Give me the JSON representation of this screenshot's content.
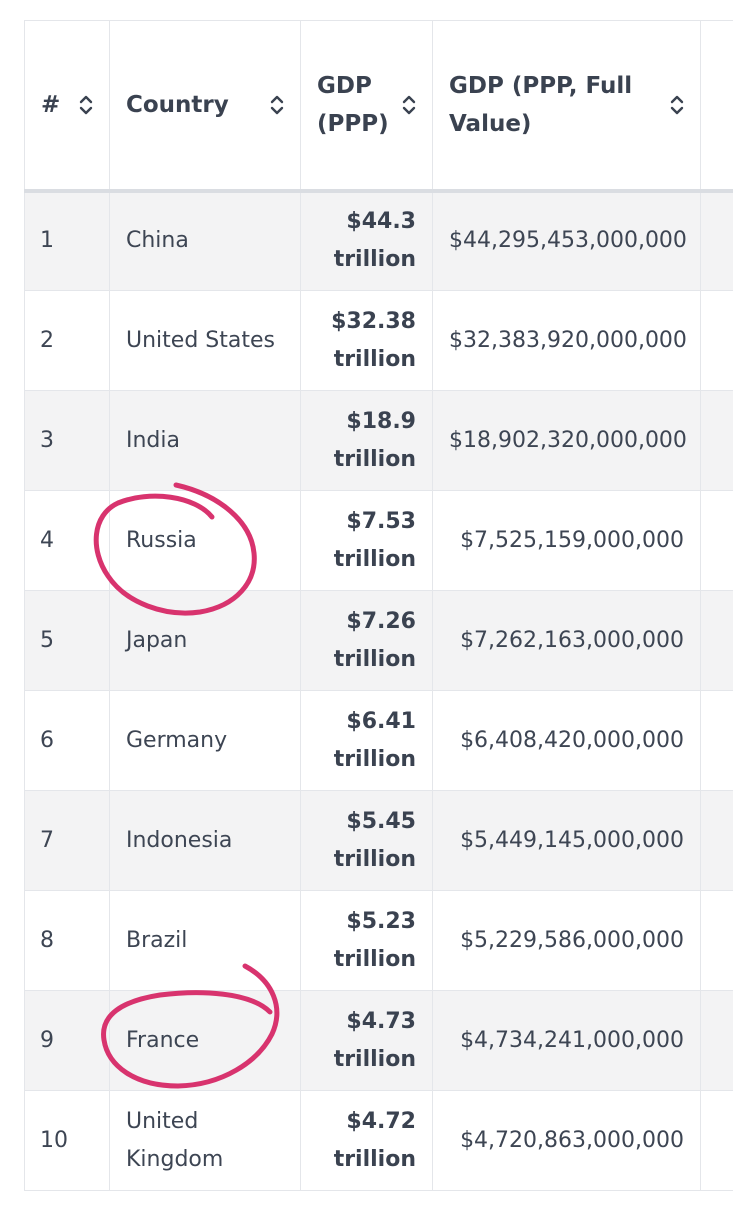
{
  "columns": [
    {
      "label": "#",
      "sortable": true
    },
    {
      "label": "Country",
      "sortable": true
    },
    {
      "label": "GDP (PPP)",
      "sortable": true
    },
    {
      "label": "GDP (PPP, Full Value)",
      "sortable": true
    }
  ],
  "rows": [
    {
      "rank": "1",
      "country": "China",
      "gdp": "$44.3 trillion",
      "full": "$44,295,453,000,000"
    },
    {
      "rank": "2",
      "country": "United States",
      "gdp": "$32.38 trillion",
      "full": "$32,383,920,000,000"
    },
    {
      "rank": "3",
      "country": "India",
      "gdp": "$18.9 trillion",
      "full": "$18,902,320,000,000"
    },
    {
      "rank": "4",
      "country": "Russia",
      "gdp": "$7.53 trillion",
      "full": "$7,525,159,000,000",
      "circled": true
    },
    {
      "rank": "5",
      "country": "Japan",
      "gdp": "$7.26 trillion",
      "full": "$7,262,163,000,000"
    },
    {
      "rank": "6",
      "country": "Germany",
      "gdp": "$6.41 trillion",
      "full": "$6,408,420,000,000"
    },
    {
      "rank": "7",
      "country": "Indonesia",
      "gdp": "$5.45 trillion",
      "full": "$5,449,145,000,000"
    },
    {
      "rank": "8",
      "country": "Brazil",
      "gdp": "$5.23 trillion",
      "full": "$5,229,586,000,000"
    },
    {
      "rank": "9",
      "country": "France",
      "gdp": "$4.73 trillion",
      "full": "$4,734,241,000,000",
      "circled": true
    },
    {
      "rank": "10",
      "country": "United Kingdom",
      "gdp": "$4.72 trillion",
      "full": "$4,720,863,000,000"
    }
  ],
  "colors": {
    "annotation": "#d8336e",
    "stripe": "#f3f3f4",
    "border": "#e4e6ea",
    "text": "#3d4553"
  },
  "icons": {
    "sort": "sort-updown-icon"
  }
}
